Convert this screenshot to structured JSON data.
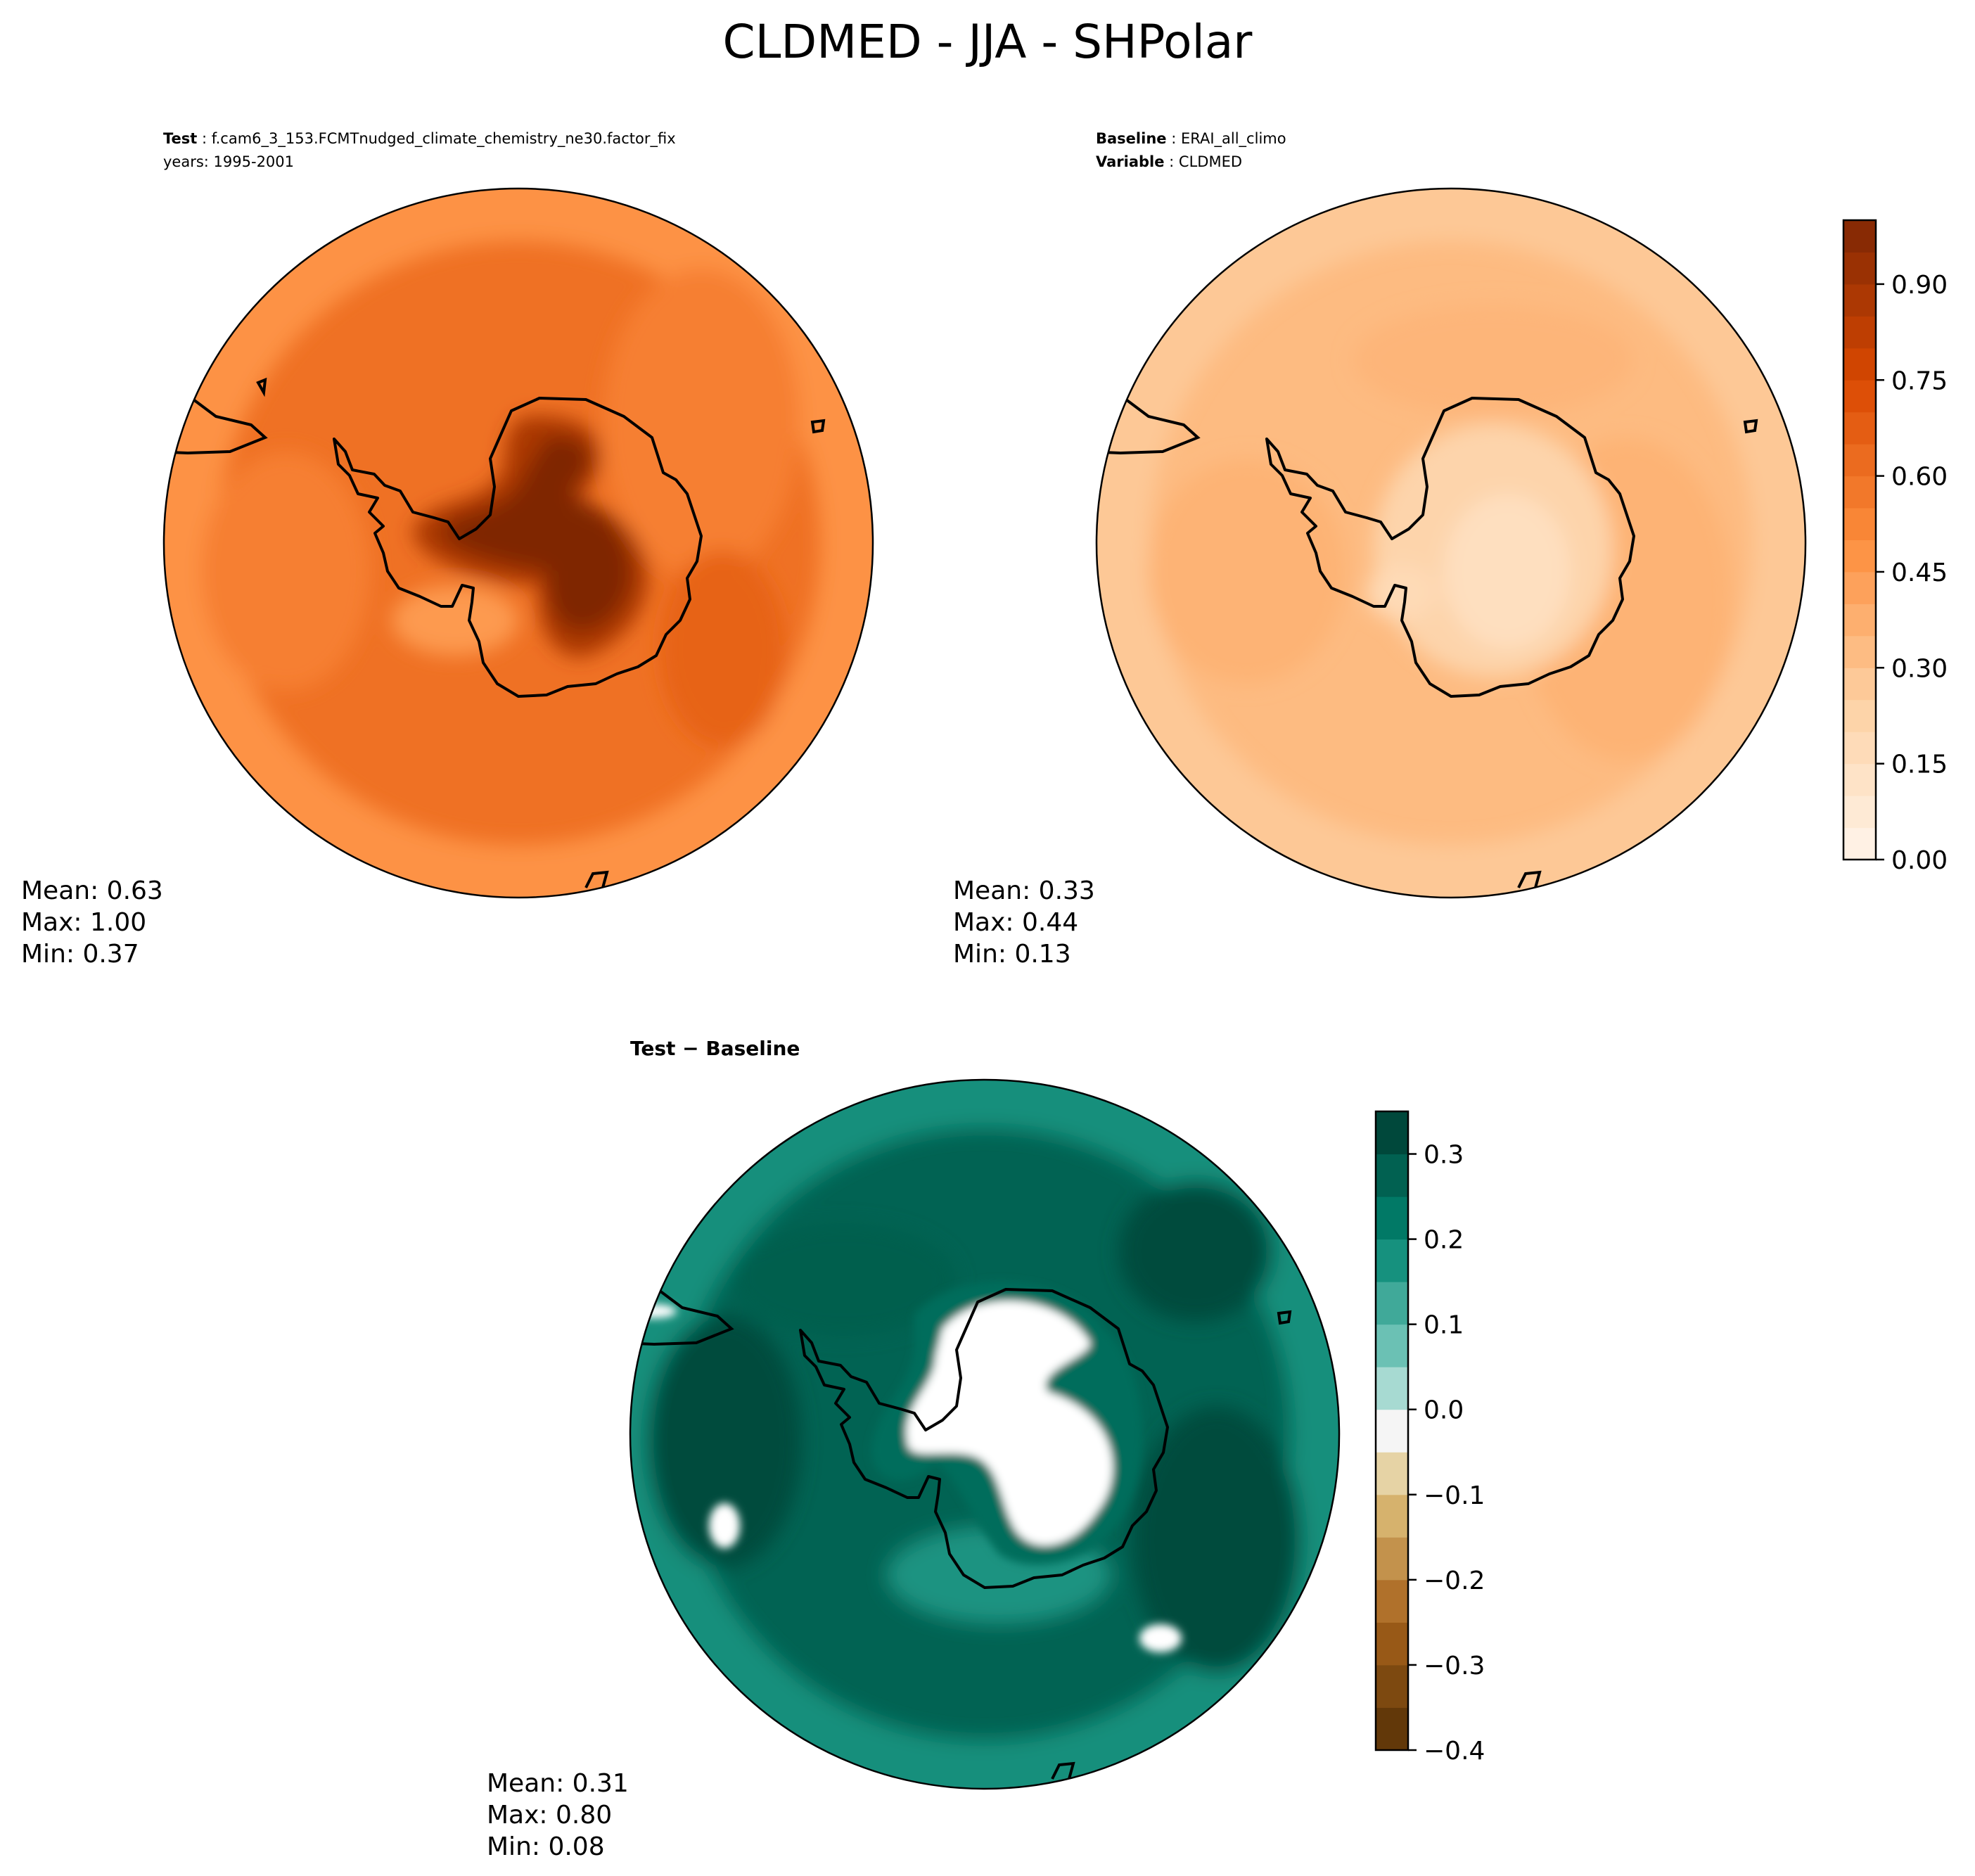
{
  "figure": {
    "title": "CLDMED - JJA - SHPolar"
  },
  "chart_data": [
    {
      "type": "heatmap",
      "panel": "test",
      "projection": "south-polar-stereographic",
      "annotation": {
        "label": "Test",
        "value": "f.cam6_3_153.FCMTnudged_climate_chemistry_ne30.factor_fix",
        "line2": "years: 1995-2001"
      },
      "stats": {
        "mean": "Mean:  0.63",
        "max": "Max:  1.00",
        "min": "Min:  0.37"
      },
      "field": {
        "background": 0.6,
        "pole_max": 1.0,
        "ocean_band": 0.55,
        "outer_ring": 0.48
      }
    },
    {
      "type": "heatmap",
      "panel": "baseline",
      "projection": "south-polar-stereographic",
      "annotation": {
        "label": "Baseline",
        "value": "ERAI_all_climo",
        "label2": "Variable",
        "value2": "CLDMED"
      },
      "stats": {
        "mean": "Mean:  0.33",
        "max": "Max:  0.44",
        "min": "Min:  0.13"
      },
      "field": {
        "background": 0.33,
        "pole_min": 0.15,
        "ocean_band": 0.36,
        "outer_ring": 0.28
      },
      "colorbar": {
        "colormap": "Oranges",
        "range": [
          0.0,
          1.0
        ],
        "levels": [
          0.0,
          0.05,
          0.1,
          0.15,
          0.2,
          0.25,
          0.3,
          0.35,
          0.4,
          0.45,
          0.5,
          0.55,
          0.6,
          0.65,
          0.7,
          0.75,
          0.8,
          0.85,
          0.9,
          0.95,
          1.0
        ],
        "ticks": [
          0.0,
          0.15,
          0.3,
          0.45,
          0.6,
          0.75,
          0.9
        ],
        "tick_labels": [
          "0.00",
          "0.15",
          "0.30",
          "0.45",
          "0.60",
          "0.75",
          "0.90"
        ]
      }
    },
    {
      "type": "heatmap",
      "panel": "difference",
      "projection": "south-polar-stereographic",
      "title": "Test − Baseline",
      "stats": {
        "mean": "Mean:  0.31",
        "max": "Max:  0.80",
        "min": "Min:  0.08"
      },
      "field": {
        "background": 0.27,
        "ocean_band": 0.32,
        "outer_ring": 0.18,
        "antarctic_interior": "above-range (white)"
      },
      "colorbar": {
        "colormap": "BrBG",
        "range": [
          -0.4,
          0.35
        ],
        "levels": [
          -0.4,
          -0.35,
          -0.3,
          -0.25,
          -0.2,
          -0.15,
          -0.1,
          -0.05,
          0.0,
          0.05,
          0.1,
          0.15,
          0.2,
          0.25,
          0.3,
          0.35
        ],
        "ticks": [
          -0.4,
          -0.3,
          -0.2,
          -0.1,
          0.0,
          0.1,
          0.2,
          0.3
        ],
        "tick_labels": [
          "−0.4",
          "−0.3",
          "−0.2",
          "−0.1",
          "0.0",
          "0.1",
          "0.2",
          "0.3"
        ]
      }
    }
  ]
}
